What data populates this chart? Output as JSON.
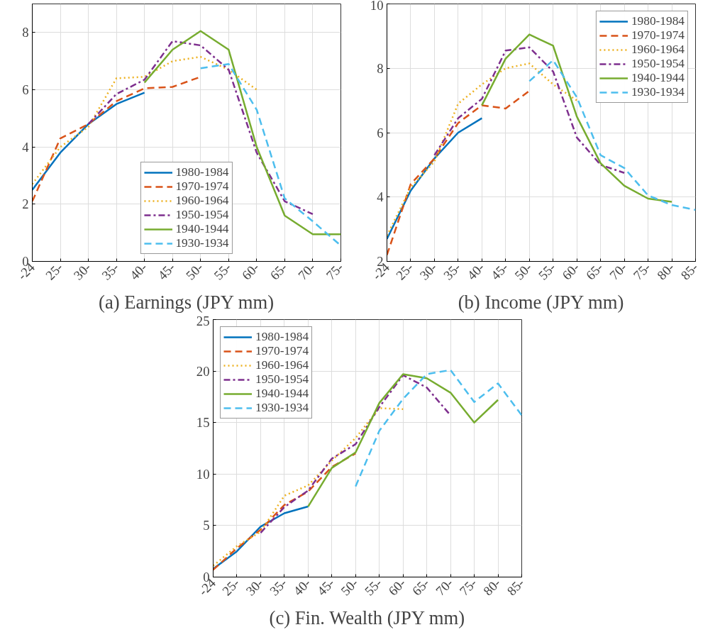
{
  "chart_data": [
    {
      "type": "line",
      "title": "(a) Earnings (JPY mm)",
      "categories": [
        "-24",
        "25-",
        "30-",
        "35-",
        "40-",
        "45-",
        "50-",
        "55-",
        "60-",
        "65-",
        "70-",
        "75-"
      ],
      "ylim": [
        0,
        9
      ],
      "yticks": [
        0,
        2,
        4,
        6,
        8
      ],
      "grid": true,
      "legend": "bottom",
      "marker": "none",
      "series": [
        {
          "name": "1980-1984",
          "color": "#0072bd",
          "line_style": "solid",
          "values": [
            2.5,
            3.8,
            4.8,
            5.5,
            5.9,
            null,
            null,
            null,
            null,
            null,
            null,
            null
          ]
        },
        {
          "name": "1970-1974",
          "color": "#d95319",
          "line_style": "dashed",
          "values": [
            2.1,
            4.3,
            4.8,
            5.6,
            6.05,
            6.1,
            6.45,
            null,
            null,
            null,
            null,
            null
          ]
        },
        {
          "name": "1960-1964",
          "color": "#edb120",
          "line_style": "dotted",
          "values": [
            2.7,
            4.0,
            4.7,
            6.4,
            6.45,
            7.0,
            7.15,
            6.7,
            6.0,
            null,
            null,
            null
          ]
        },
        {
          "name": "1950-1954",
          "color": "#7e2f8e",
          "line_style": "dashdot",
          "values": [
            null,
            null,
            4.8,
            5.85,
            6.35,
            7.7,
            7.55,
            6.7,
            3.8,
            2.1,
            1.65,
            null
          ]
        },
        {
          "name": "1940-1944",
          "color": "#77ac30",
          "line_style": "solid",
          "values": [
            null,
            null,
            null,
            null,
            6.25,
            7.4,
            8.05,
            7.4,
            4.0,
            1.6,
            0.95,
            0.95
          ]
        },
        {
          "name": "1930-1934",
          "color": "#4dbeee",
          "line_style": "dashed",
          "values": [
            null,
            null,
            null,
            null,
            null,
            null,
            6.75,
            6.9,
            5.3,
            2.2,
            1.4,
            0.55
          ]
        }
      ]
    },
    {
      "type": "line",
      "title": "(b) Income (JPY mm)",
      "categories": [
        "-24",
        "25-",
        "30-",
        "35-",
        "40-",
        "45-",
        "50-",
        "55-",
        "60-",
        "65-",
        "70-",
        "75-",
        "80-",
        "85-"
      ],
      "ylim": [
        2,
        10
      ],
      "yticks": [
        2,
        4,
        6,
        8,
        10
      ],
      "grid": true,
      "legend": "top right",
      "marker": "none",
      "series": [
        {
          "name": "1980-1984",
          "color": "#0072bd",
          "line_style": "solid",
          "values": [
            2.7,
            4.2,
            5.2,
            6.0,
            6.45,
            null,
            null,
            null,
            null,
            null,
            null,
            null,
            null,
            null
          ]
        },
        {
          "name": "1970-1974",
          "color": "#d95319",
          "line_style": "dashed",
          "values": [
            2.2,
            4.4,
            5.2,
            6.3,
            6.85,
            6.75,
            7.3,
            null,
            null,
            null,
            null,
            null,
            null,
            null
          ]
        },
        {
          "name": "1960-1964",
          "color": "#edb120",
          "line_style": "dotted",
          "values": [
            2.8,
            4.3,
            5.1,
            6.9,
            7.5,
            8.0,
            8.15,
            7.5,
            7.0,
            null,
            null,
            null,
            null,
            null
          ]
        },
        {
          "name": "1950-1954",
          "color": "#7e2f8e",
          "line_style": "dashdot",
          "values": [
            null,
            null,
            5.3,
            6.45,
            7.05,
            8.55,
            8.65,
            7.9,
            5.85,
            5.0,
            4.75,
            null,
            null,
            null
          ]
        },
        {
          "name": "1940-1944",
          "color": "#77ac30",
          "line_style": "solid",
          "values": [
            null,
            null,
            null,
            null,
            6.85,
            8.3,
            9.05,
            8.7,
            6.5,
            5.05,
            4.35,
            3.95,
            3.85,
            null
          ]
        },
        {
          "name": "1930-1934",
          "color": "#4dbeee",
          "line_style": "dashed",
          "values": [
            null,
            null,
            null,
            null,
            null,
            null,
            7.6,
            8.25,
            7.1,
            5.3,
            4.9,
            4.05,
            3.75,
            3.6
          ]
        }
      ]
    },
    {
      "type": "line",
      "title": "(c) Fin. Wealth (JPY mm)",
      "categories": [
        "-24",
        "25-",
        "30-",
        "35-",
        "40-",
        "45-",
        "50-",
        "55-",
        "60-",
        "65-",
        "70-",
        "75-",
        "80-",
        "85-"
      ],
      "ylim": [
        0,
        25
      ],
      "yticks": [
        0,
        5,
        10,
        15,
        20,
        25
      ],
      "grid": true,
      "legend": "top left",
      "marker": "none",
      "series": [
        {
          "name": "1980-1984",
          "color": "#0072bd",
          "line_style": "solid",
          "values": [
            0.8,
            2.5,
            4.9,
            6.2,
            6.85,
            null,
            null,
            null,
            null,
            null,
            null,
            null,
            null,
            null
          ]
        },
        {
          "name": "1970-1974",
          "color": "#d95319",
          "line_style": "dashed",
          "values": [
            0.7,
            2.8,
            4.6,
            7.0,
            8.3,
            10.7,
            12.0,
            null,
            null,
            null,
            null,
            null,
            null,
            null
          ]
        },
        {
          "name": "1960-1964",
          "color": "#edb120",
          "line_style": "dotted",
          "values": [
            1.1,
            3.0,
            4.4,
            7.9,
            8.9,
            11.3,
            13.5,
            16.4,
            16.3,
            null,
            null,
            null,
            null,
            null
          ]
        },
        {
          "name": "1950-1954",
          "color": "#7e2f8e",
          "line_style": "dashdot",
          "values": [
            null,
            null,
            4.3,
            6.8,
            8.4,
            11.5,
            12.9,
            16.5,
            19.6,
            18.4,
            15.7,
            null,
            null,
            null
          ]
        },
        {
          "name": "1940-1944",
          "color": "#77ac30",
          "line_style": "solid",
          "values": [
            null,
            null,
            null,
            null,
            6.85,
            10.6,
            12.1,
            16.9,
            19.7,
            19.3,
            17.9,
            15.0,
            17.2,
            null
          ]
        },
        {
          "name": "1930-1934",
          "color": "#4dbeee",
          "line_style": "dashed",
          "values": [
            null,
            null,
            null,
            null,
            null,
            null,
            8.8,
            14.2,
            17.3,
            19.7,
            20.1,
            17.0,
            18.8,
            15.7
          ]
        }
      ]
    }
  ]
}
